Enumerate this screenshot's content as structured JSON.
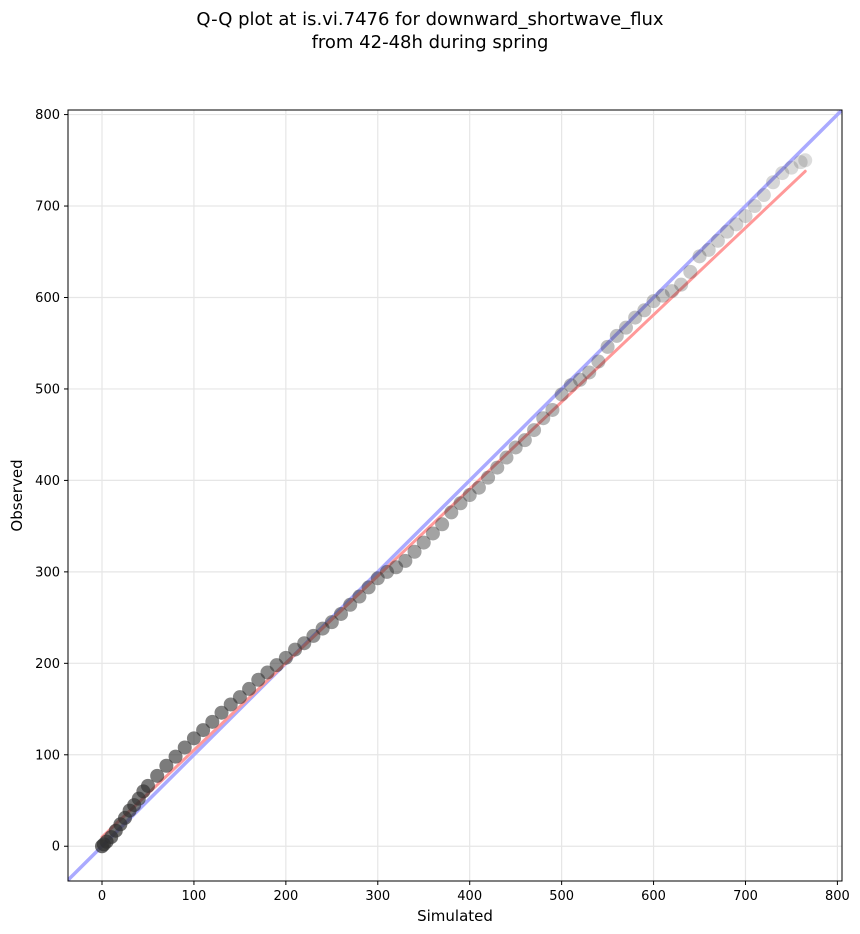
{
  "chart_data": {
    "type": "scatter",
    "title": "Q-Q plot at is.vi.7476 for downward_shortwave_flux",
    "subtitle": "from 42-48h during spring",
    "xlabel": "Simulated",
    "ylabel": "Observed",
    "xlim": [
      -37,
      805
    ],
    "ylim": [
      -38,
      805
    ],
    "xticks": [
      0,
      100,
      200,
      300,
      400,
      500,
      600,
      700,
      800
    ],
    "yticks": [
      0,
      100,
      200,
      300,
      400,
      500,
      600,
      700,
      800
    ],
    "grid": true,
    "reference_line": {
      "slope": 1,
      "intercept": 0,
      "color": "#aaaaff"
    },
    "fit_line": {
      "x": [
        0,
        765
      ],
      "y": [
        10,
        738
      ],
      "color": "#ff9999"
    },
    "point_color": "#303030",
    "quantiles": {
      "x": [
        0,
        2,
        5,
        10,
        15,
        20,
        25,
        30,
        35,
        40,
        45,
        50,
        60,
        70,
        80,
        90,
        100,
        110,
        120,
        130,
        140,
        150,
        160,
        170,
        180,
        190,
        200,
        210,
        220,
        230,
        240,
        250,
        260,
        270,
        280,
        290,
        300,
        310,
        320,
        330,
        340,
        350,
        360,
        370,
        380,
        390,
        400,
        410,
        420,
        430,
        440,
        450,
        460,
        470,
        480,
        490,
        500,
        510,
        520,
        530,
        540,
        550,
        560,
        570,
        580,
        590,
        600,
        610,
        620,
        630,
        640,
        650,
        660,
        670,
        680,
        690,
        700,
        710,
        720,
        730,
        740,
        750,
        760,
        765
      ],
      "y": [
        0,
        2,
        5,
        10,
        17,
        24,
        31,
        39,
        45,
        52,
        60,
        66,
        77,
        88,
        98,
        108,
        118,
        127,
        136,
        146,
        155,
        163,
        172,
        182,
        190,
        198,
        206,
        215,
        222,
        230,
        238,
        245,
        254,
        264,
        273,
        283,
        293,
        300,
        305,
        312,
        322,
        332,
        342,
        352,
        365,
        375,
        384,
        392,
        403,
        414,
        425,
        436,
        444,
        455,
        468,
        477,
        494,
        504,
        510,
        518,
        530,
        546,
        558,
        567,
        578,
        586,
        596,
        602,
        607,
        614,
        628,
        645,
        652,
        662,
        672,
        680,
        689,
        700,
        712,
        726,
        736,
        742,
        748,
        750
      ]
    }
  }
}
